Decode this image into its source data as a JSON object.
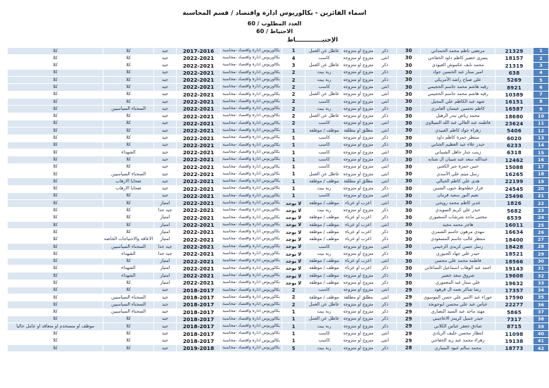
{
  "colors": {
    "badge_blue": "#4F81BD",
    "row_shade": "#DCE6F1",
    "page_bg": "#FFFFFF"
  },
  "header": {
    "title": "اسماء الفائزين - بكالوريوس ادارة واقتصاد / قسم المحاسبة",
    "required_line": "العدد المطلوب / 60",
    "reserve_line": "الاحتياط / 60",
    "section_label": "الإحتيـــــــــــــاط"
  },
  "table": {
    "degree_text": "بكالوريوس ادارة واقتصاد -محاسبة",
    "rows": [
      {
        "no": "1",
        "id": "21329",
        "name": "مرتضى ناظم محمد الحمداني",
        "age": "30",
        "gender": "ذكر",
        "marital": "متزوج او متزوجة",
        "occupation": "عاطل عن العمل",
        "dependents": "1",
        "degree": "بكالوريوس ادارة واقتصاد -محاسبة",
        "years": "2017-2016",
        "grade": "جيد",
        "category": "كلا",
        "employed": "كلا",
        "shaded": true
      },
      {
        "no": "2",
        "id": "18157",
        "name": "يسرى خضير كاظم داود الخفاجي",
        "age": "30",
        "gender": "انثى",
        "marital": "متزوج او متزوجة",
        "occupation": "كاسب",
        "dependents": "4",
        "degree": "بكالوريوس ادارة واقتصاد -محاسبة",
        "years": "2022-2021",
        "grade": "جيد",
        "category": "كلا",
        "employed": "كلا",
        "shaded": false
      },
      {
        "no": "3",
        "id": "21319",
        "name": "محمد نايف عكموش العبودي",
        "age": "30",
        "gender": "ذكر",
        "marital": "متزوج او متزوجة",
        "occupation": "عاطل عن العمل",
        "dependents": "3",
        "degree": "بكالوريوس ادارة واقتصاد -محاسبة",
        "years": "2022-2021",
        "grade": "جيد",
        "category": "كلا",
        "employed": "كلا",
        "shaded": false
      },
      {
        "no": "4",
        "id": "638",
        "name": "امير ستار عبد الحسين جواد",
        "age": "30",
        "gender": "ذكر",
        "marital": "متزوج او متزوجة",
        "occupation": "ربة بيت",
        "dependents": "2",
        "degree": "بكالوريوس ادارة واقتصاد -محاسبة",
        "years": "2022-2021",
        "grade": "جيد",
        "category": "كلا",
        "employed": "كلا",
        "shaded": true
      },
      {
        "no": "5",
        "id": "5269",
        "name": "علي صباح راشد الأمريكي",
        "age": "30",
        "gender": "ذكر",
        "marital": "متزوج او متزوجة",
        "occupation": "ربة بيت",
        "dependents": "2",
        "degree": "بكالوريوس ادارة واقتصاد -محاسبة",
        "years": "2022-2021",
        "grade": "جيد",
        "category": "كلا",
        "employed": "كلا",
        "shaded": true
      },
      {
        "no": "6",
        "id": "8921",
        "name": "رقيه هاشم محمد جاسم الحجيمي",
        "age": "30",
        "gender": "انثى",
        "marital": "متزوج او متزوجة",
        "occupation": "كاسب",
        "dependents": "2",
        "degree": "بكالوريوس ادارة واقتصاد -محاسبة",
        "years": "2022-2021",
        "grade": "جيد",
        "category": "كلا",
        "employed": "كلا",
        "shaded": true
      },
      {
        "no": "7",
        "id": "10389",
        "name": "رقيه هاشم محمد جاسم الحجيمي",
        "age": "30",
        "gender": "انثى",
        "marital": "متزوج او متزوجة",
        "occupation": "عاطل عن العمل",
        "dependents": "2",
        "degree": "بكالوريوس ادارة واقتصاد -محاسبة",
        "years": "2022-2021",
        "grade": "جيد",
        "category": "كلا",
        "employed": "كلا",
        "shaded": false
      },
      {
        "no": "8",
        "id": "16151",
        "name": "شهد عبد الكاظم علي المجيل",
        "age": "30",
        "gender": "انثى",
        "marital": "متزوج او متزوجة",
        "occupation": "كاسب",
        "dependents": "2",
        "degree": "بكالوريوس ادارة واقتصاد -محاسبة",
        "years": "2022-2021",
        "grade": "جيد",
        "category": "كلا",
        "employed": "كلا",
        "shaded": true
      },
      {
        "no": "9",
        "id": "16587",
        "name": "كاظم تحسين عيسان العامري",
        "age": "30",
        "gender": "ذكر",
        "marital": "متزوج او متزوجة",
        "occupation": "ربة بيت",
        "dependents": "2",
        "degree": "بكالوريوس ادارة واقتصاد -محاسبة",
        "years": "2022-2021",
        "grade": "جيد",
        "category": "السجناء السياسيين",
        "employed": "كلا",
        "shaded": true
      },
      {
        "no": "10",
        "id": "18680",
        "name": "محمد رياض بندر الرهيل",
        "age": "30",
        "gender": "ذكر",
        "marital": "متزوج او متزوجة",
        "occupation": "عاطل عن العمل",
        "dependents": "2",
        "degree": "بكالوريوس ادارة واقتصاد -محاسبة",
        "years": "2022-2021",
        "grade": "جيد",
        "category": "كلا",
        "employed": "كلا",
        "shaded": false
      },
      {
        "no": "11",
        "id": "23624",
        "name": "فاطمه عبد العالي عبد الله السيلاوي",
        "age": "30",
        "gender": "انثى",
        "marital": "متزوج او متزوجة",
        "occupation": "كاسب",
        "dependents": "2",
        "degree": "بكالوريوس ادارة واقتصاد -محاسبة",
        "years": "2022-2021",
        "grade": "جيد",
        "category": "كلا",
        "employed": "كلا",
        "shaded": true
      },
      {
        "no": "12",
        "id": "5406",
        "name": "زهراء جواد كاظم العبيدي",
        "age": "30",
        "gender": "انثى",
        "marital": "مطلق او مطلقة",
        "occupation": "موظف / موظفة",
        "dependents": "1",
        "degree": "بكالوريوس ادارة واقتصاد -محاسبة",
        "years": "2022-2021",
        "grade": "جيد",
        "category": "كلا",
        "employed": "كلا",
        "shaded": true
      },
      {
        "no": "13",
        "id": "6020",
        "name": "منتظر حمزة كاظم داود",
        "age": "30",
        "gender": "ذكر",
        "marital": "متزوج او متزوجة",
        "occupation": "كاسب",
        "dependents": "1",
        "degree": "بكالوريوس ادارة واقتصاد -محاسبة",
        "years": "2022-2021",
        "grade": "جيد",
        "category": "كلا",
        "employed": "كلا",
        "shaded": false
      },
      {
        "no": "14",
        "id": "6233",
        "name": "حيدر علاء عبد العظيم الجنابي",
        "age": "30",
        "gender": "ذكر",
        "marital": "متزوج او متزوجة",
        "occupation": "كاسب",
        "dependents": "1",
        "degree": "بكالوريوس ادارة واقتصاد -محاسبة",
        "years": "2022-2021",
        "grade": "جيد",
        "category": "كلا",
        "employed": "كلا",
        "shaded": true
      },
      {
        "no": "15",
        "id": "6318",
        "name": "زينب جبار جاهل الشيباني",
        "age": "30",
        "gender": "انثى",
        "marital": "متزوج او متزوجة",
        "occupation": "كاسب",
        "dependents": "1",
        "degree": "بكالوريوس ادارة واقتصاد -محاسبة",
        "years": "2022-2021",
        "grade": "جيد",
        "category": "الشهداء",
        "employed": "كلا",
        "shaded": false
      },
      {
        "no": "16",
        "id": "12462",
        "name": "عبدالله سعد عبد شيبان ال شنابه",
        "age": "30",
        "gender": "ذكر",
        "marital": "متزوج او متزوجة",
        "occupation": "كاسب",
        "dependents": "1",
        "degree": "بكالوريوس ادارة واقتصاد -محاسبة",
        "years": "2022-2021",
        "grade": "جيد",
        "category": "كلا",
        "employed": "كلا",
        "shaded": true
      },
      {
        "no": "17",
        "id": "15088",
        "name": "حنين حمزة جبر الكعبي",
        "age": "30",
        "gender": "انثى",
        "marital": "متزوج او متزوجة",
        "occupation": "كاسب",
        "dependents": "1",
        "degree": "بكالوريوس ادارة واقتصاد -محاسبة",
        "years": "2022-2021",
        "grade": "جيد",
        "category": "كلا",
        "employed": "كلا",
        "shaded": false
      },
      {
        "no": "18",
        "id": "16265",
        "name": "رسل ميثم علي الأسدي",
        "age": "30",
        "gender": "انثى",
        "marital": "متزوج او متزوجة",
        "occupation": "عاطل عن العمل",
        "dependents": "1",
        "degree": "بكالوريوس ادارة واقتصاد -محاسبة",
        "years": "2022-2021",
        "grade": "جيد",
        "category": "السجناء السياسيين",
        "employed": "كلا",
        "shaded": false
      },
      {
        "no": "19",
        "id": "22199",
        "name": "هدى علي كاظم الحيالي",
        "age": "30",
        "gender": "انثى",
        "marital": "مطلق او مطلقة",
        "occupation": "موظف / موظفة",
        "dependents": "1",
        "degree": "بكالوريوس ادارة واقتصاد -محاسبة",
        "years": "2022-2021",
        "grade": "جيد",
        "category": "ضحايا الارهاب",
        "employed": "كلا",
        "shaded": true
      },
      {
        "no": "20",
        "id": "24545",
        "name": "قرار حطحوط حنون الشنين",
        "age": "30",
        "gender": "ذكر",
        "marital": "متزوج او متزوجة",
        "occupation": "ربة بيت",
        "dependents": "1",
        "degree": "بكالوريوس ادارة واقتصاد -محاسبة",
        "years": "2022-2021",
        "grade": "جيد",
        "category": "ضحايا الارهاب",
        "employed": "كلا",
        "shaded": false
      },
      {
        "no": "21",
        "id": "25496",
        "name": "نعيم النور سعيد قرمان",
        "age": "30",
        "gender": "انثى",
        "marital": "متزوج او متزوجة",
        "occupation": "كاسب",
        "dependents": "1",
        "degree": "بكالوريوس ادارة واقتصاد -محاسبة",
        "years": "2022-2021",
        "grade": "جيد",
        "category": "كلا",
        "employed": "كلا",
        "shaded": true
      },
      {
        "no": "22",
        "id": "1826",
        "name": "غدير كاظم محمد رويحي",
        "age": "30",
        "gender": "انثى",
        "marital": "اعزب او عزباء",
        "occupation": "موظف / موظفة",
        "dependents": "لا يوجد",
        "degree": "بكالوريوس ادارة واقتصاد -محاسبة",
        "years": "2022-2021",
        "grade": "امتياز",
        "category": "كلا",
        "employed": "كلا",
        "shaded": true
      },
      {
        "no": "23",
        "id": "5682",
        "name": "حيدر علي كريم السويدي",
        "age": "30",
        "gender": "ذكر",
        "marital": "متزوج او متزوجة",
        "occupation": "ربة بيت",
        "dependents": "لا يوجد",
        "degree": "بكالوريوس ادارة واقتصاد -محاسبة",
        "years": "2022-2021",
        "grade": "جيد جدا",
        "category": "كلا",
        "employed": "كلا",
        "shaded": false
      },
      {
        "no": "24",
        "id": "6539",
        "name": "مجتبى ماجد شرشاب المنصوري",
        "age": "30",
        "gender": "ذكر",
        "marital": "اعزب او عزباء",
        "occupation": "موظف / موظفة",
        "dependents": "لا يوجد",
        "degree": "بكالوريوس ادارة واقتصاد -محاسبة",
        "years": "2022-2021",
        "grade": "امتياز",
        "category": "كلا",
        "employed": "كلا",
        "shaded": false
      },
      {
        "no": "25",
        "id": "16011",
        "name": "هاجر محمد مجيد",
        "age": "30",
        "gender": "انثى",
        "marital": "اعزب او عزباء",
        "occupation": "موظف / موظفة",
        "dependents": "لا يوجد",
        "degree": "بكالوريوس ادارة واقتصاد -محاسبة",
        "years": "2022-2021",
        "grade": "امتياز",
        "category": "كلا",
        "employed": "كلا",
        "shaded": true
      },
      {
        "no": "26",
        "id": "16634",
        "name": "مهدي مرهون جاسم الشمري",
        "age": "30",
        "gender": "ذكر",
        "marital": "اعزب او عزباء",
        "occupation": "موظف / موظفة",
        "dependents": "لا يوجد",
        "degree": "بكالوريوس ادارة واقتصاد -محاسبة",
        "years": "2022-2021",
        "grade": "امتياز",
        "category": "كلا",
        "employed": "كلا",
        "shaded": false
      },
      {
        "no": "27",
        "id": "18400",
        "name": "منتظر غالب جاسم المسعودي",
        "age": "30",
        "gender": "ذكر",
        "marital": "اعزب او عزباء",
        "occupation": "موظف / موظفة",
        "dependents": "لا يوجد",
        "degree": "بكالوريوس ادارة واقتصاد -محاسبة",
        "years": "2022-2021",
        "grade": "امتياز",
        "category": "الاعاقة والاحتياجات الخاصة",
        "employed": "كلا",
        "shaded": false
      },
      {
        "no": "28",
        "id": "18428",
        "name": "رسل حسن كريدي الرخيمي",
        "age": "30",
        "gender": "انثى",
        "marital": "متزوج او متزوجة",
        "occupation": "كاسب",
        "dependents": "لا يوجد",
        "degree": "بكالوريوس ادارة واقتصاد -محاسبة",
        "years": "2022-2021",
        "grade": "جيد جدا",
        "category": "السجناء السياسيين",
        "employed": "كلا",
        "shaded": true
      },
      {
        "no": "29",
        "id": "18521",
        "name": "حيدر علي جهاد الجبوري",
        "age": "30",
        "gender": "ذكر",
        "marital": "متزوج او متزوجة",
        "occupation": "ربة بيت",
        "dependents": "لا يوجد",
        "degree": "بكالوريوس ادارة واقتصاد -محاسبة",
        "years": "2022-2021",
        "grade": "جيد جدا",
        "category": "الشهداء",
        "employed": "كلا",
        "shaded": false
      },
      {
        "no": "30",
        "id": "18566",
        "name": "فاطمة محمد علي محسن",
        "age": "30",
        "gender": "انثى",
        "marital": "اعزب او عزباء",
        "occupation": "موظف / موظفة",
        "dependents": "لا يوجد",
        "degree": "بكالوريوس ادارة واقتصاد -محاسبة",
        "years": "2022-2021",
        "grade": "امتياز",
        "category": "كلا",
        "employed": "كلا",
        "shaded": true
      },
      {
        "no": "31",
        "id": "19143",
        "name": "احمد عبد الوهاب اسماعيل الساعاتي",
        "age": "30",
        "gender": "ذكر",
        "marital": "اعزب او عزباء",
        "occupation": "موظف / موظفة",
        "dependents": "لا يوجد",
        "degree": "بكالوريوس ادارة واقتصاد -محاسبة",
        "years": "2022-2021",
        "grade": "امتياز",
        "category": "الشهداء",
        "employed": "كلا",
        "shaded": false
      },
      {
        "no": "32",
        "id": "19608",
        "name": "شروق سعد خضير",
        "age": "30",
        "gender": "ذكر",
        "marital": "متزوج او متزوجة",
        "occupation": "موظف / موظفة",
        "dependents": "لا يوجد",
        "degree": "بكالوريوس ادارة واقتصاد -محاسبة",
        "years": "2022-2021",
        "grade": "امتياز",
        "category": "الشهداء",
        "employed": "كلا",
        "shaded": true
      },
      {
        "no": "33",
        "id": "19632",
        "name": "علي ستار عبد المعموري",
        "age": "30",
        "gender": "ذكر",
        "marital": "متزوج او متزوجة",
        "occupation": "موظف / موظفة",
        "dependents": "لا يوجد",
        "degree": "بكالوريوس ادارة واقتصاد -محاسبة",
        "years": "2022-2021",
        "grade": "امتياز",
        "category": "كلا",
        "employed": "كلا",
        "shaded": false
      },
      {
        "no": "34",
        "id": "17357",
        "name": "رشا شاكر نعمه ال قرهود",
        "age": "29",
        "gender": "انثى",
        "marital": "متزوج او متزوجة",
        "occupation": "كاسب",
        "dependents": "2",
        "degree": "بكالوريوس ادارة واقتصاد -محاسبة",
        "years": "2018-2017",
        "grade": "جيد",
        "category": "كلا",
        "employed": "كلا",
        "shaded": true
      },
      {
        "no": "35",
        "id": "17590",
        "name": "حوراء عبد الامير علي حسن الموسوي",
        "age": "29",
        "gender": "انثى",
        "marital": "مطلق او مطلقة",
        "occupation": "موظف / موظفة",
        "dependents": "2",
        "degree": "بكالوريوس ادارة واقتصاد -محاسبة",
        "years": "2018-2017",
        "grade": "جيد",
        "category": "السجناء السياسيين",
        "employed": "كلا",
        "shaded": false
      },
      {
        "no": "36",
        "id": "22277",
        "name": "عباس عبد علي محسن ابوحويجد",
        "age": "29",
        "gender": "ذكر",
        "marital": "متزوج او متزوجة",
        "occupation": "عاطل عن العمل",
        "dependents": "2",
        "degree": "بكالوريوس ادارة واقتصاد -محاسبة",
        "years": "2018-2017",
        "grade": "جيد",
        "category": "السجناء السياسيين",
        "employed": "كلا",
        "shaded": true
      },
      {
        "no": "37",
        "id": "5865",
        "name": "مهند ماجد عبد السيد النصاري",
        "age": "29",
        "gender": "ذكر",
        "marital": "متزوج او متزوجة",
        "occupation": "ربة بيت",
        "dependents": "1",
        "degree": "بكالوريوس ادارة واقتصاد -محاسبة",
        "years": "2018-2017",
        "grade": "جيد",
        "category": "السجناء السياسيين",
        "employed": "كلا",
        "shaded": false
      },
      {
        "no": "38",
        "id": "7317",
        "name": "حيدر جميل كريمز الاعاجيبي",
        "age": "29",
        "gender": "ذكر",
        "marital": "متزوج او متزوجة",
        "occupation": "عاطل عن العمل",
        "dependents": "1",
        "degree": "بكالوريوس ادارة واقتصاد -محاسبة",
        "years": "2018-2017",
        "grade": "جيد",
        "category": "كلا",
        "employed": "كلا",
        "shaded": true
      },
      {
        "no": "39",
        "id": "8715",
        "name": "صادق جعفر عباس الكلابي",
        "age": "29",
        "gender": "ذكر",
        "marital": "متزوج او متزوجة",
        "occupation": "ربة بيت",
        "dependents": "1",
        "degree": "بكالوريوس ادارة واقتصاد -محاسبة",
        "years": "2018-2017",
        "grade": "جيد",
        "category": "كلا",
        "employed": "موظف او مستخدم او متعاقد او عامل حاليا",
        "shaded": true
      },
      {
        "no": "40",
        "id": "11098",
        "name": "انتظار محسن خليف الزيادي",
        "age": "29",
        "gender": "انثى",
        "marital": "متزوج او متزوجة",
        "occupation": "كاسب",
        "dependents": "1",
        "degree": "بكالوريوس ادارة واقتصاد -محاسبة",
        "years": "2018-2017",
        "grade": "جيد",
        "category": "كلا",
        "employed": "كلا",
        "shaded": false
      },
      {
        "no": "41",
        "id": "19138",
        "name": "زهراء محمد عبد زيد الخفاجي",
        "age": "29",
        "gender": "انثى",
        "marital": "متزوج او متزوجة",
        "occupation": "كاسب",
        "dependents": "1",
        "degree": "بكالوريوس ادارة واقتصاد -محاسبة",
        "years": "2018-2017",
        "grade": "جيد",
        "category": "كلا",
        "employed": "كلا",
        "shaded": false
      },
      {
        "no": "42",
        "id": "18773",
        "name": "محمد سالم عبود البساري",
        "age": "28",
        "gender": "ذكر",
        "marital": "متزوج او متزوجة",
        "occupation": "ربة بيت",
        "dependents": "5",
        "degree": "بكالوريوس ادارة واقتصاد -محاسبة",
        "years": "2019-2018",
        "grade": "جيد",
        "category": "كلا",
        "employed": "كلا",
        "shaded": true
      }
    ]
  }
}
